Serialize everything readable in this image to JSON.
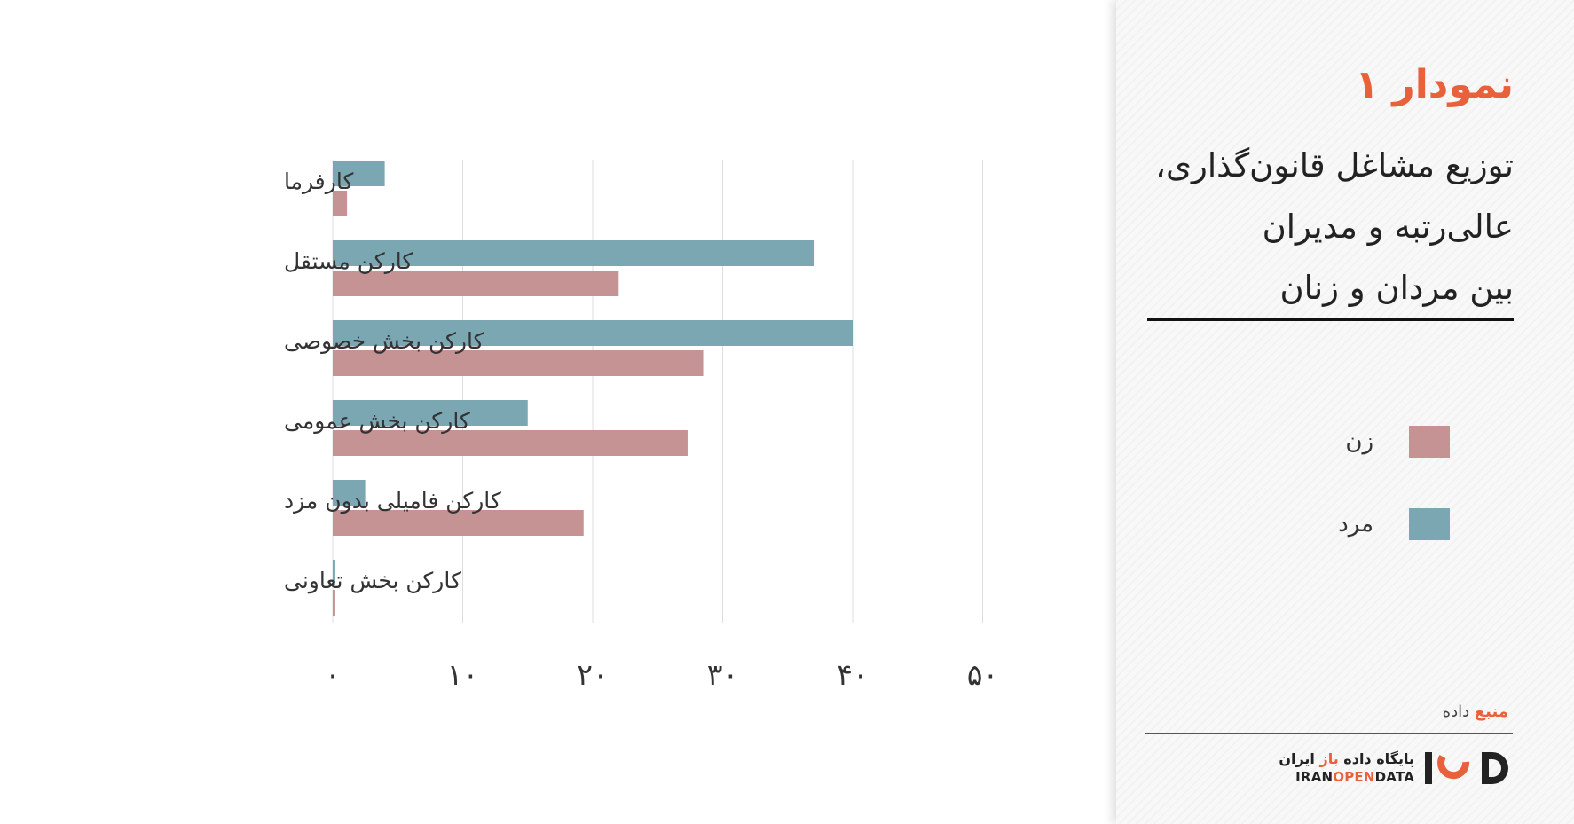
{
  "panel": {
    "heading": "نمودار ۱",
    "subtitle_lines": [
      "توزیع مشاغل قانون‌گذاری،",
      "عالی‌رتبه و مدیران",
      "بین مردان و زنان"
    ],
    "source_prefix": "منبع",
    "source_rest": " داده",
    "brand_fa_main": "پایگاه داده ",
    "brand_fa_accent": "باز",
    "brand_fa_end": " ایران",
    "brand_en_main": "IRAN",
    "brand_en_accent": "OPEN",
    "brand_en_end": "DATA",
    "logo_icon": "iod-logo-icon"
  },
  "colors": {
    "men": "#7ba7b3",
    "women": "#c59393",
    "accent": "#e8613a",
    "gridline": "#dddddd"
  },
  "chart_data": {
    "type": "bar",
    "orientation": "horizontal",
    "categories": [
      "کارفرما",
      "کارکن مستقل",
      "کارکن بخش خصوصی",
      "کارکن بخش عمومی",
      "کارکن فامیلی بدون مزد",
      "کارکن بخش تعاونی"
    ],
    "series": [
      {
        "name": "مرد",
        "values": [
          4,
          37,
          40,
          15,
          2.5,
          0.2
        ]
      },
      {
        "name": "زن",
        "values": [
          1.1,
          22,
          28.5,
          27.3,
          19.3,
          0.2
        ]
      }
    ],
    "xticks": [
      "۰",
      "۱۰",
      "۲۰",
      "۳۰",
      "۴۰",
      "۵۰"
    ],
    "tick_values": [
      0,
      10,
      20,
      30,
      40,
      50
    ],
    "xlim": [
      0,
      50
    ],
    "grid": "vertical",
    "legend": "right-panel"
  }
}
